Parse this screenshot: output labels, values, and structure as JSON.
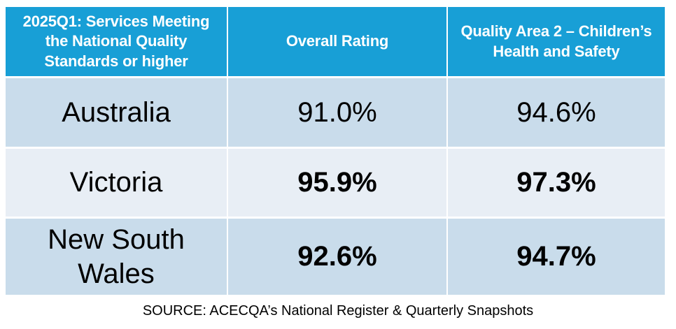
{
  "chart_data": {
    "type": "table",
    "title": "2025Q1: Services Meeting the National Quality Standards or higher",
    "columns": [
      "2025Q1: Services Meeting the National Quality Standards or higher",
      "Overall Rating",
      "Quality Area 2 – Children’s Health and Safety"
    ],
    "rows": [
      {
        "region": "Australia",
        "overall_rating": "91.0%",
        "quality_area_2": "94.6%",
        "emphasis": false
      },
      {
        "region": "Victoria",
        "overall_rating": "95.9%",
        "quality_area_2": "97.3%",
        "emphasis": true
      },
      {
        "region": "New South Wales",
        "overall_rating": "92.6%",
        "quality_area_2": "94.7%",
        "emphasis": true
      }
    ],
    "source": "SOURCE: ACECQA’s National Register & Quarterly Snapshots",
    "layout": {
      "grid": false,
      "legend": "none"
    }
  },
  "table": {
    "header": [
      "2025Q1: Services Meeting\nthe National Quality\nStandards or higher",
      "Overall Rating",
      "Quality Area 2 – Children’s\nHealth and Safety"
    ],
    "rows": [
      {
        "region": "Australia",
        "overall": "91.0%",
        "qa2": "94.6%"
      },
      {
        "region": "Victoria",
        "overall": "95.9%",
        "qa2": "97.3%"
      },
      {
        "region": "New South\nWales",
        "overall": "92.6%",
        "qa2": "94.7%"
      }
    ]
  },
  "footer": {
    "source": "SOURCE: ACECQA’s National Register & Quarterly Snapshots"
  },
  "colors": {
    "header_bg": "#189FD6",
    "header_text": "#FFFFFF",
    "row_light": "#C9DCEB",
    "row_lighter": "#E8EEF5",
    "body_text": "#000000",
    "divider": "#FFFFFF"
  }
}
